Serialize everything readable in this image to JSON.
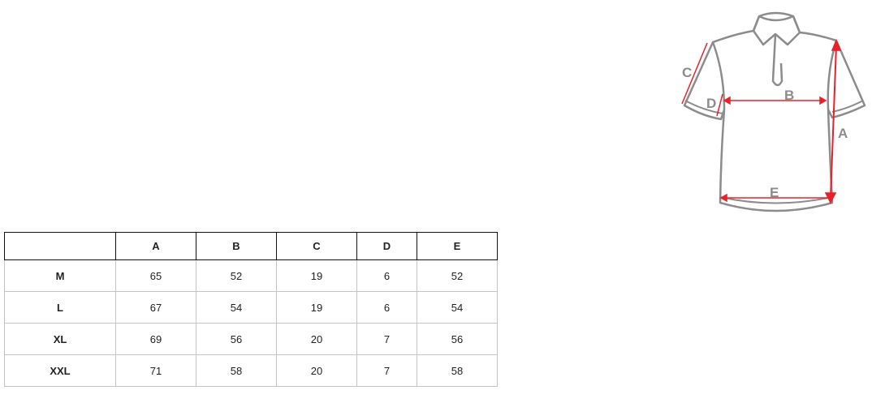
{
  "table": {
    "headers": [
      "",
      "A",
      "B",
      "C",
      "D",
      "E"
    ],
    "rows": [
      {
        "size": "M",
        "values": [
          "65",
          "52",
          "19",
          "6",
          "52"
        ]
      },
      {
        "size": "L",
        "values": [
          "67",
          "54",
          "19",
          "6",
          "54"
        ]
      },
      {
        "size": "XL",
        "values": [
          "69",
          "56",
          "20",
          "7",
          "56"
        ]
      },
      {
        "size": "XXL",
        "values": [
          "71",
          "58",
          "20",
          "7",
          "58"
        ]
      }
    ]
  },
  "diagram": {
    "labels": {
      "a": "A",
      "b": "B",
      "c": "C",
      "d": "D",
      "e": "E"
    },
    "colors": {
      "outline": "#8c8c8c",
      "measure": "#e8202a",
      "label": "#8c8c8c"
    }
  }
}
